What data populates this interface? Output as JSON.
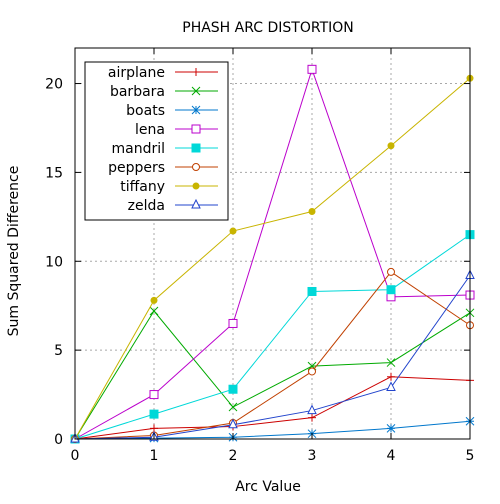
{
  "chart_data": {
    "type": "line",
    "title": "PHASH ARC DISTORTION",
    "xlabel": "Arc Value",
    "ylabel": "Sum Squared Difference",
    "xlim": [
      0,
      5
    ],
    "ylim": [
      0,
      22
    ],
    "x": [
      0,
      1,
      2,
      3,
      4,
      5
    ],
    "xticks": [
      "0",
      "1",
      "2",
      "3",
      "4",
      "5"
    ],
    "yticks": [
      "0",
      "5",
      "10",
      "15",
      "20"
    ],
    "ytick_values": [
      0,
      5,
      10,
      15,
      20
    ],
    "grid": true,
    "legend_position": "top-left",
    "series": [
      {
        "name": "airplane",
        "color": "#cc0000",
        "marker": "plus",
        "values": [
          0,
          0.6,
          0.7,
          1.2,
          3.5,
          3.3
        ]
      },
      {
        "name": "barbara",
        "color": "#00aa00",
        "marker": "cross",
        "values": [
          0,
          7.2,
          1.8,
          4.1,
          4.3,
          7.1
        ]
      },
      {
        "name": "boats",
        "color": "#0077cc",
        "marker": "asterisk",
        "values": [
          0,
          0.05,
          0.1,
          0.3,
          0.6,
          1.0
        ]
      },
      {
        "name": "lena",
        "color": "#bb00cc",
        "marker": "square-open",
        "values": [
          0,
          2.5,
          6.5,
          20.8,
          8.0,
          8.1
        ]
      },
      {
        "name": "mandril",
        "color": "#00d8d8",
        "marker": "square-filled",
        "values": [
          0,
          1.4,
          2.8,
          8.3,
          8.4,
          11.5
        ]
      },
      {
        "name": "peppers",
        "color": "#c04000",
        "marker": "circle-open",
        "values": [
          0,
          0.2,
          0.9,
          3.8,
          9.4,
          6.4
        ]
      },
      {
        "name": "tiffany",
        "color": "#c8b400",
        "marker": "circle-filled",
        "values": [
          0,
          7.8,
          11.7,
          12.8,
          16.5,
          20.3
        ]
      },
      {
        "name": "zelda",
        "color": "#2244cc",
        "marker": "triangle-open",
        "values": [
          0,
          0.1,
          0.8,
          1.6,
          2.9,
          9.2
        ]
      }
    ]
  }
}
